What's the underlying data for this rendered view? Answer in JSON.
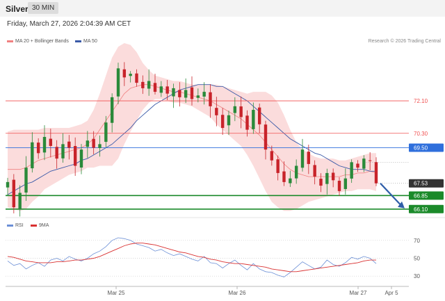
{
  "header": {
    "symbol": "Silver",
    "timeframe": "30 MIN"
  },
  "date_text": "Friday, March 27, 2026 2:04:39 AM CET",
  "credit": "Research © 2026 Trading Central",
  "legend": [
    {
      "label": "MA 20 + Bollinger Bands",
      "color": "#f08080"
    },
    {
      "label": "MA 50",
      "color": "#3a5aa8"
    }
  ],
  "rsi_legend": [
    {
      "label": "RSI",
      "color": "#6b8fd6"
    },
    {
      "label": "9MA",
      "color": "#d93030"
    }
  ],
  "chart_data": [
    {
      "type": "candlestick",
      "price_labels": [
        {
          "value": 72.1,
          "text": "72.10",
          "style": "resistance"
        },
        {
          "value": 70.3,
          "text": "70.30",
          "style": "resistance"
        },
        {
          "value": 69.5,
          "text": "69.50",
          "style": "pivot"
        },
        {
          "value": 67.53,
          "text": "67.53",
          "style": "last"
        },
        {
          "value": 66.85,
          "text": "66.85",
          "style": "support"
        },
        {
          "value": 66.1,
          "text": "66.10",
          "style": "support"
        }
      ],
      "x_ticks": [
        "Mar 25",
        "Mar 26",
        "Mar 27",
        "Apr 5"
      ],
      "ylim": [
        65.9,
        75.3
      ],
      "close_path": [
        67.6,
        66.2,
        67.0,
        68.4,
        69.8,
        69.2,
        70.1,
        69.6,
        68.9,
        69.7,
        69.5,
        68.5,
        69.4,
        69.9,
        69.5,
        69.7,
        70.9,
        72.3,
        73.9,
        73.4,
        73.6,
        73.1,
        72.8,
        73.2,
        72.6,
        72.9,
        72.5,
        72.8,
        72.3,
        72.7,
        72.2,
        72.4,
        72.6,
        71.8,
        71.3,
        70.6,
        71.3,
        71.8,
        71.2,
        70.5,
        71.6,
        70.8,
        69.4,
        68.8,
        68.1,
        67.6,
        67.8,
        68.5,
        69.4,
        68.6,
        67.9,
        67.4,
        68.1,
        67.7,
        67.1,
        67.8,
        68.7,
        68.4,
        68.9,
        68.8,
        67.53
      ],
      "ma20": [
        68.3,
        68.3,
        68.3,
        68.4,
        68.6,
        68.8,
        68.9,
        69.0,
        69.1,
        69.2,
        69.3,
        69.4,
        69.5,
        69.7,
        70.0,
        70.5,
        71.0,
        71.5,
        72.0,
        72.5,
        72.8,
        72.9,
        73.0,
        73.0,
        72.9,
        72.8,
        72.7,
        72.6,
        72.6,
        72.5,
        72.4,
        72.3,
        72.2,
        72.1,
        71.9,
        71.7,
        71.5,
        71.3,
        71.1,
        70.8,
        70.5,
        70.2,
        69.8,
        69.4,
        69.0,
        68.6,
        68.3,
        68.1,
        68.0,
        67.9,
        67.9,
        67.9,
        67.9,
        67.9,
        67.9,
        68.0,
        68.0,
        68.1,
        68.1,
        68.2,
        68.1
      ],
      "bb_upper": [
        70.4,
        70.5,
        70.5,
        70.5,
        70.5,
        70.5,
        70.6,
        70.6,
        70.6,
        70.6,
        70.6,
        70.7,
        70.8,
        71.0,
        71.6,
        72.5,
        73.5,
        74.5,
        75.1,
        75.3,
        75.2,
        74.8,
        74.2,
        73.8,
        73.5,
        73.4,
        73.3,
        73.2,
        73.2,
        73.1,
        73.0,
        73.0,
        73.0,
        73.0,
        73.0,
        72.9,
        72.8,
        72.7,
        72.6,
        72.5,
        72.6,
        72.6,
        72.6,
        72.4,
        72.0,
        71.3,
        70.5,
        69.8,
        69.4,
        69.2,
        69.0,
        68.9,
        68.9,
        68.9,
        68.8,
        68.8,
        68.9,
        69.0,
        69.1,
        69.2,
        69.2
      ],
      "bb_lower": [
        66.2,
        66.1,
        66.0,
        66.1,
        66.5,
        66.8,
        67.2,
        67.4,
        67.6,
        67.8,
        68.0,
        68.1,
        68.2,
        68.4,
        68.4,
        68.5,
        68.5,
        68.5,
        68.9,
        69.7,
        70.4,
        71.0,
        71.6,
        72.0,
        72.2,
        72.2,
        72.1,
        72.0,
        72.0,
        71.9,
        71.8,
        71.6,
        71.4,
        71.2,
        70.8,
        70.5,
        70.2,
        69.9,
        69.6,
        69.1,
        68.5,
        67.8,
        67.1,
        66.5,
        66.2,
        66.0,
        66.0,
        66.1,
        66.3,
        66.5,
        66.6,
        66.7,
        66.8,
        66.9,
        67.0,
        67.1,
        67.1,
        67.2,
        67.2,
        67.2,
        67.1
      ],
      "ma50": [
        66.9,
        67.1,
        67.3,
        67.5,
        67.6,
        67.8,
        68.0,
        68.2,
        68.3,
        68.4,
        68.5,
        68.6,
        68.8,
        68.9,
        69.1,
        69.3,
        69.5,
        69.7,
        70.0,
        70.3,
        70.6,
        71.0,
        71.3,
        71.6,
        71.9,
        72.1,
        72.3,
        72.5,
        72.7,
        72.8,
        72.9,
        73.0,
        73.0,
        73.0,
        72.9,
        72.9,
        72.7,
        72.5,
        72.3,
        72.1,
        71.8,
        71.5,
        71.2,
        70.9,
        70.6,
        70.3,
        70.0,
        69.8,
        69.6,
        69.4,
        69.2,
        69.1,
        68.9,
        68.7,
        68.5,
        68.4,
        68.3,
        68.3,
        68.3,
        68.2,
        68.2
      ]
    },
    {
      "type": "line",
      "title": "RSI",
      "ylim": [
        20,
        80
      ],
      "y_ticks": [
        70,
        50,
        30
      ],
      "series": [
        {
          "name": "RSI",
          "values": [
            47,
            42,
            44,
            38,
            42,
            45,
            41,
            48,
            50,
            47,
            52,
            49,
            47,
            50,
            55,
            58,
            63,
            70,
            73,
            72,
            70,
            66,
            64,
            62,
            58,
            60,
            56,
            53,
            55,
            52,
            49,
            47,
            52,
            45,
            44,
            39,
            44,
            48,
            42,
            37,
            44,
            38,
            35,
            34,
            31,
            29,
            34,
            40,
            46,
            42,
            38,
            40,
            48,
            43,
            41,
            45,
            51,
            49,
            52,
            50,
            44
          ]
        },
        {
          "name": "9MA",
          "values": [
            52,
            51,
            49,
            47,
            46,
            45,
            45,
            45,
            46,
            46,
            47,
            48,
            48,
            49,
            50,
            52,
            55,
            58,
            61,
            64,
            66,
            67,
            67,
            66,
            65,
            63,
            61,
            59,
            57,
            56,
            54,
            52,
            51,
            49,
            48,
            46,
            45,
            44,
            44,
            43,
            42,
            41,
            40,
            38,
            37,
            36,
            35,
            35,
            36,
            37,
            38,
            39,
            40,
            41,
            42,
            43,
            44,
            45,
            47,
            48,
            48
          ]
        }
      ]
    }
  ]
}
